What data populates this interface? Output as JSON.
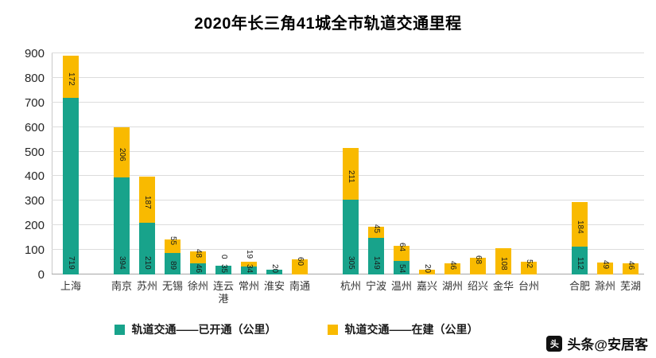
{
  "title": "2020年长三角41城全市轨道交通里程",
  "watermark": {
    "icon_glyph": "头",
    "text": "头条@安居客"
  },
  "colors": {
    "opened": "#18A38B",
    "under_construction": "#F9BA00",
    "gridline": "#dcdcdc"
  },
  "chart_data": {
    "type": "bar",
    "stacked": true,
    "title": "2020年长三角41城全市轨道交通里程",
    "ylim": [
      0,
      900
    ],
    "yticks": [
      0,
      100,
      200,
      300,
      400,
      500,
      600,
      700,
      800,
      900
    ],
    "grid": true,
    "legend_position": "bottom",
    "series_names": [
      "轨道交通——已开通（公里）",
      "轨道交通——在建（公里）"
    ],
    "categories": [
      "上海",
      "南京",
      "苏州",
      "无锡",
      "徐州",
      "连云港",
      "常州",
      "淮安",
      "南通",
      "杭州",
      "宁波",
      "温州",
      "嘉兴",
      "湖州",
      "绍兴",
      "金华",
      "台州",
      "合肥",
      "滁州",
      "芜湖"
    ],
    "series": [
      {
        "name": "轨道交通——已开通（公里）",
        "color": "#18A38B",
        "values": [
          719,
          394,
          210,
          89,
          46,
          35,
          34,
          20,
          0,
          305,
          149,
          54,
          0,
          0,
          0,
          0,
          0,
          112,
          0,
          0
        ]
      },
      {
        "name": "轨道交通——在建（公里）",
        "color": "#F9BA00",
        "values": [
          172,
          206,
          187,
          55,
          48,
          0,
          19,
          0,
          60,
          211,
          45,
          64,
          20,
          46,
          68,
          108,
          52,
          184,
          49,
          46
        ]
      }
    ],
    "bars": [
      {
        "city": "上海",
        "slot": 0,
        "opened": 719,
        "under": 172,
        "label_opened": "719",
        "label_under": "172"
      },
      {
        "city": "南京",
        "slot": 2,
        "opened": 394,
        "under": 206,
        "label_opened": "394",
        "label_under": "206"
      },
      {
        "city": "苏州",
        "slot": 3,
        "opened": 210,
        "under": 187,
        "label_opened": "210",
        "label_under": "187"
      },
      {
        "city": "无锡",
        "slot": 4,
        "opened": 89,
        "under": 55,
        "label_opened": "89",
        "label_under": "55"
      },
      {
        "city": "徐州",
        "slot": 5,
        "opened": 46,
        "under": 48,
        "label_opened": "46",
        "label_under": "48"
      },
      {
        "city": "连云港",
        "slot": 6,
        "opened": 35,
        "under": 0,
        "label_opened": "35",
        "label_under": "0"
      },
      {
        "city": "常州",
        "slot": 7,
        "opened": 34,
        "under": 19,
        "label_opened": "34",
        "label_under": "19"
      },
      {
        "city": "淮安",
        "slot": 8,
        "opened": 20,
        "under": 0,
        "label_opened": "20",
        "label_under": ""
      },
      {
        "city": "南通",
        "slot": 9,
        "opened": 0,
        "under": 60,
        "label_opened": "",
        "label_under": "60"
      },
      {
        "city": "杭州",
        "slot": 11,
        "opened": 305,
        "under": 211,
        "label_opened": "305",
        "label_under": "211"
      },
      {
        "city": "宁波",
        "slot": 12,
        "opened": 149,
        "under": 45,
        "label_opened": "149",
        "label_under": "45"
      },
      {
        "city": "温州",
        "slot": 13,
        "opened": 54,
        "under": 64,
        "label_opened": "54",
        "label_under": "64"
      },
      {
        "city": "嘉兴",
        "slot": 14,
        "opened": 0,
        "under": 20,
        "label_opened": "",
        "label_under": "20"
      },
      {
        "city": "湖州",
        "slot": 15,
        "opened": 0,
        "under": 46,
        "label_opened": "",
        "label_under": "46"
      },
      {
        "city": "绍兴",
        "slot": 16,
        "opened": 0,
        "under": 68,
        "label_opened": "",
        "label_under": "68"
      },
      {
        "city": "金华",
        "slot": 17,
        "opened": 0,
        "under": 108,
        "label_opened": "",
        "label_under": "108"
      },
      {
        "city": "台州",
        "slot": 18,
        "opened": 0,
        "under": 52,
        "label_opened": "",
        "label_under": "52"
      },
      {
        "city": "合肥",
        "slot": 20,
        "opened": 112,
        "under": 184,
        "label_opened": "112",
        "label_under": "184"
      },
      {
        "city": "滁州",
        "slot": 21,
        "opened": 0,
        "under": 49,
        "label_opened": "",
        "label_under": "49"
      },
      {
        "city": "芜湖",
        "slot": 22,
        "opened": 0,
        "under": 46,
        "label_opened": "",
        "label_under": "46"
      }
    ],
    "n_slots": 23
  }
}
